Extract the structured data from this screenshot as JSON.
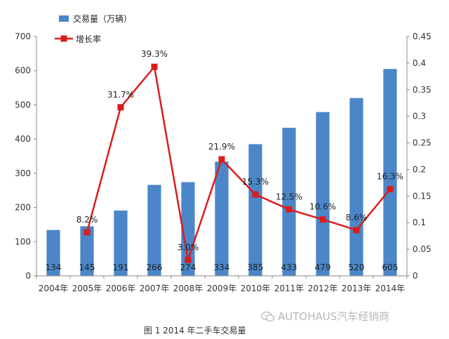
{
  "chart_data": {
    "type": "bar+line",
    "categories": [
      "2004年",
      "2005年",
      "2006年",
      "2007年",
      "2008年",
      "2009年",
      "2010年",
      "2011年",
      "2012年",
      "2013年",
      "2014年"
    ],
    "series": [
      {
        "name": "交易量（万辆）",
        "type": "bar",
        "axis": "left",
        "values": [
          134,
          145,
          191,
          266,
          274,
          334,
          385,
          433,
          479,
          520,
          605
        ],
        "labels": [
          "134",
          "145",
          "191",
          "266",
          "274",
          "334",
          "385",
          "433",
          "479",
          "520",
          "605"
        ],
        "color": "#4a86c8"
      },
      {
        "name": "增长率",
        "type": "line",
        "axis": "right",
        "values": [
          null,
          0.082,
          0.317,
          0.393,
          0.03,
          0.219,
          0.153,
          0.125,
          0.106,
          0.086,
          0.163
        ],
        "labels": [
          "",
          "8.2%",
          "31.7%",
          "39.3%",
          "3.0%",
          "21.9%",
          "15.3%",
          "12.5%",
          "10.6%",
          "8.6%",
          "16.3%"
        ],
        "color": "#d91d1d"
      }
    ],
    "ylim_left": [
      0,
      700
    ],
    "yticks_left": [
      "0",
      "100",
      "200",
      "300",
      "400",
      "500",
      "600",
      "700"
    ],
    "ylim_right": [
      0,
      0.45
    ],
    "yticks_right": [
      "0",
      "0.05",
      "0.1",
      "0.15",
      "0.2",
      "0.25",
      "0.3",
      "0.35",
      "0.4",
      "0.45"
    ],
    "legend": {
      "position": "top-left",
      "items": [
        "交易量（万辆）",
        "增长率"
      ]
    }
  },
  "caption": "图 1 2014 年二手车交易量",
  "watermark": "AUTOHAUS汽车经销商"
}
